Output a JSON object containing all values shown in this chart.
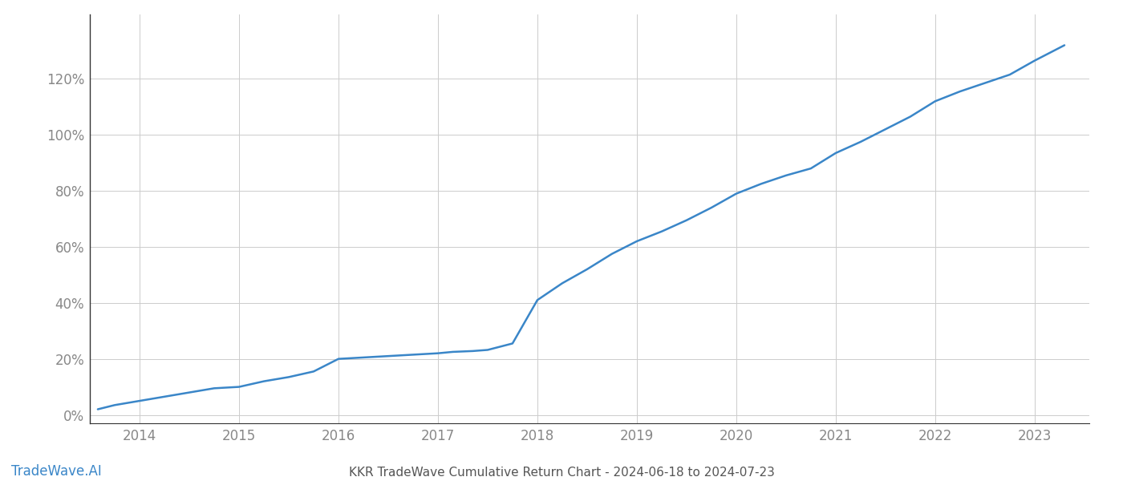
{
  "title": "KKR TradeWave Cumulative Return Chart - 2024-06-18 to 2024-07-23",
  "watermark": "TradeWave.AI",
  "line_color": "#3a86c8",
  "background_color": "#ffffff",
  "grid_color": "#cccccc",
  "x_years": [
    2013.58,
    2013.75,
    2014.0,
    2014.25,
    2014.5,
    2014.75,
    2015.0,
    2015.25,
    2015.5,
    2015.75,
    2016.0,
    2016.25,
    2016.5,
    2016.75,
    2017.0,
    2017.15,
    2017.35,
    2017.5,
    2017.75,
    2018.0,
    2018.25,
    2018.5,
    2018.75,
    2019.0,
    2019.25,
    2019.5,
    2019.75,
    2020.0,
    2020.25,
    2020.5,
    2020.75,
    2021.0,
    2021.25,
    2021.5,
    2021.75,
    2022.0,
    2022.25,
    2022.5,
    2022.75,
    2023.0,
    2023.3
  ],
  "y_values": [
    0.02,
    0.035,
    0.05,
    0.065,
    0.08,
    0.095,
    0.1,
    0.12,
    0.135,
    0.155,
    0.2,
    0.205,
    0.21,
    0.215,
    0.22,
    0.225,
    0.228,
    0.232,
    0.255,
    0.41,
    0.47,
    0.52,
    0.575,
    0.62,
    0.655,
    0.695,
    0.74,
    0.79,
    0.825,
    0.855,
    0.88,
    0.935,
    0.975,
    1.02,
    1.065,
    1.12,
    1.155,
    1.185,
    1.215,
    1.265,
    1.32
  ],
  "xlim": [
    2013.5,
    2023.55
  ],
  "ylim": [
    -0.03,
    1.43
  ],
  "xticks": [
    2014,
    2015,
    2016,
    2017,
    2018,
    2019,
    2020,
    2021,
    2022,
    2023
  ],
  "yticks": [
    0.0,
    0.2,
    0.4,
    0.6,
    0.8,
    1.0,
    1.2
  ],
  "ytick_labels": [
    "0%",
    "20%",
    "40%",
    "60%",
    "80%",
    "100%",
    "120%"
  ],
  "line_width": 1.8,
  "title_fontsize": 11,
  "tick_fontsize": 12,
  "watermark_fontsize": 12,
  "title_color": "#555555",
  "tick_color": "#888888",
  "watermark_color": "#3a86c8",
  "spine_color": "#333333",
  "left_spine_visible": true
}
